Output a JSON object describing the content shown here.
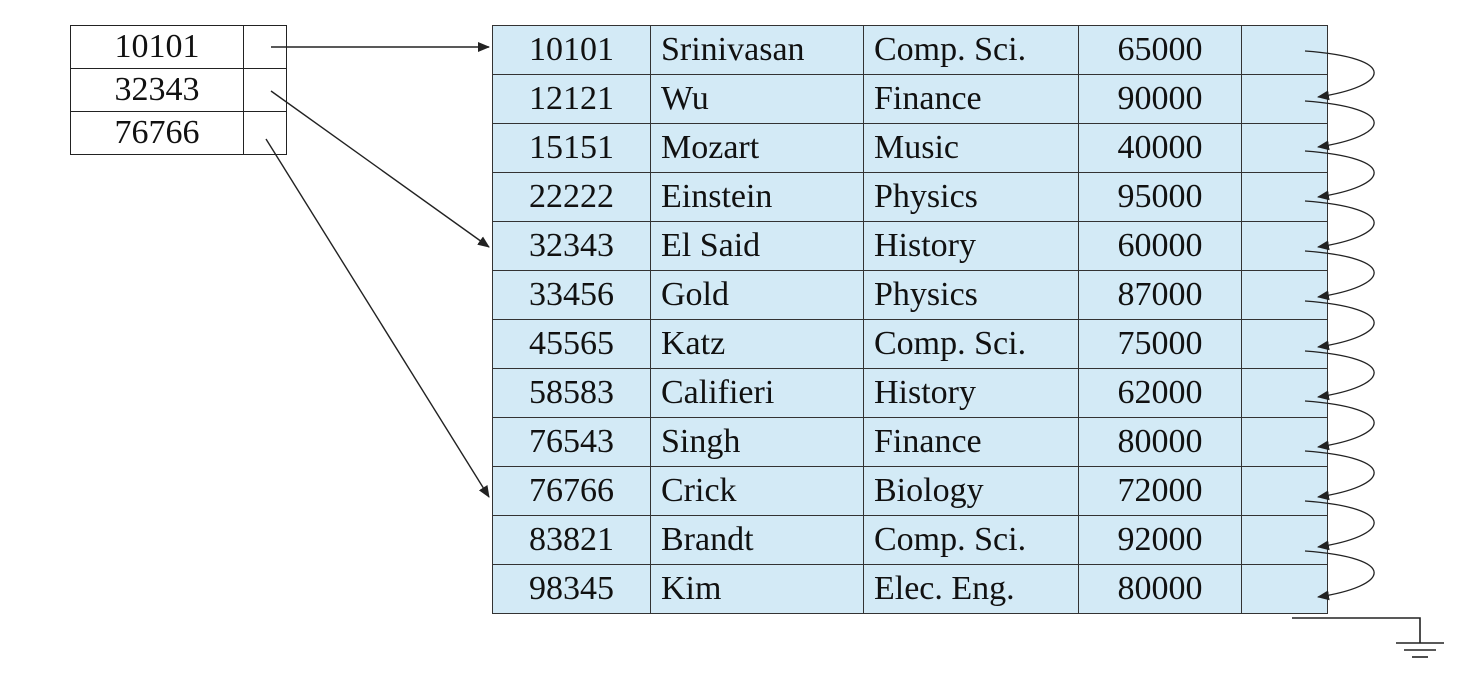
{
  "index": [
    {
      "key": "10101"
    },
    {
      "key": "32343"
    },
    {
      "key": "76766"
    }
  ],
  "records": [
    {
      "id": "10101",
      "name": "Srinivasan",
      "dept": "Comp. Sci.",
      "salary": "65000"
    },
    {
      "id": "12121",
      "name": "Wu",
      "dept": "Finance",
      "salary": "90000"
    },
    {
      "id": "15151",
      "name": "Mozart",
      "dept": "Music",
      "salary": "40000"
    },
    {
      "id": "22222",
      "name": "Einstein",
      "dept": "Physics",
      "salary": "95000"
    },
    {
      "id": "32343",
      "name": "El Said",
      "dept": "History",
      "salary": "60000"
    },
    {
      "id": "33456",
      "name": "Gold",
      "dept": "Physics",
      "salary": "87000"
    },
    {
      "id": "45565",
      "name": "Katz",
      "dept": "Comp. Sci.",
      "salary": "75000"
    },
    {
      "id": "58583",
      "name": "Califieri",
      "dept": "History",
      "salary": "62000"
    },
    {
      "id": "76543",
      "name": "Singh",
      "dept": "Finance",
      "salary": "80000"
    },
    {
      "id": "76766",
      "name": "Crick",
      "dept": "Biology",
      "salary": "72000"
    },
    {
      "id": "83821",
      "name": "Brandt",
      "dept": "Comp. Sci.",
      "salary": "92000"
    },
    {
      "id": "98345",
      "name": "Kim",
      "dept": "Elec. Eng.",
      "salary": "80000"
    }
  ],
  "colors": {
    "record_fill": "#d3eaf6",
    "line": "#222222"
  }
}
